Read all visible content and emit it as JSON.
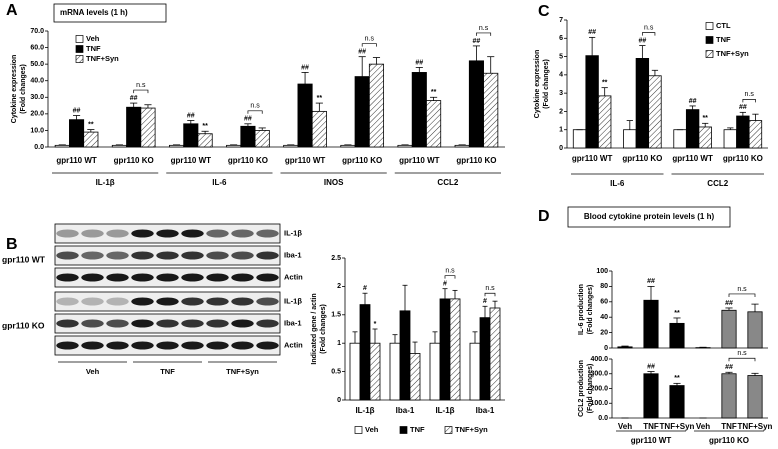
{
  "chart_data": [
    {
      "type": "bar",
      "panel": "A",
      "title": "mRNA levels (1 h)",
      "ylabel": [
        "Cytokine expression",
        "(Fold changes)"
      ],
      "categories": [
        "gpr110 WT",
        "gpr110 KO",
        "gpr110 WT",
        "gpr110 KO",
        "gpr110 WT",
        "gpr110 KO",
        "gpr110 WT",
        "gpr110 KO"
      ],
      "groups": [
        "IL-1β",
        "IL-6",
        "INOS",
        "CCL2"
      ],
      "category_notes": [
        null,
        "n.s",
        null,
        "n.s",
        null,
        "n.s",
        null,
        "n.s"
      ],
      "legend": "top-left",
      "ylim": [
        0,
        70
      ],
      "yticks": [
        {
          "value": 0,
          "label": "0.0"
        },
        {
          "value": 10,
          "label": "10.0"
        },
        {
          "value": 20,
          "label": "20.0"
        },
        {
          "value": 30,
          "label": "30.0"
        },
        {
          "value": 40,
          "label": "40.0"
        },
        {
          "value": 50,
          "label": "50.0"
        },
        {
          "value": 60,
          "label": "60.0"
        },
        {
          "value": 70,
          "label": "70.0"
        }
      ],
      "series": [
        {
          "name": "Veh",
          "color": "#ffffff",
          "values": [
            1,
            1,
            1,
            1,
            1,
            1,
            1,
            1
          ],
          "errors": [
            0.3,
            0.3,
            0.3,
            0.3,
            0.3,
            0.3,
            0.3,
            0.3
          ],
          "markers": [
            null,
            null,
            null,
            null,
            null,
            null,
            null,
            null
          ]
        },
        {
          "name": "TNF",
          "color": "#000000",
          "values": [
            16.5,
            24,
            14,
            12.5,
            38,
            42.5,
            45,
            52
          ],
          "errors": [
            2.5,
            2.5,
            2,
            1.5,
            7,
            12,
            3,
            9
          ],
          "markers": [
            "##",
            "##",
            "##",
            "##",
            "##",
            "##",
            "##",
            "##"
          ]
        },
        {
          "name": "TNF+Syn",
          "color": "#000000",
          "pattern": "hatch",
          "values": [
            9,
            23.5,
            8,
            10,
            21.5,
            50,
            28,
            44.5
          ],
          "errors": [
            1.5,
            2,
            1.5,
            1.5,
            5,
            4,
            2,
            10
          ],
          "markers": [
            "**",
            null,
            "**",
            null,
            "**",
            null,
            "**",
            null
          ]
        }
      ]
    },
    {
      "type": "bar",
      "panel": "C",
      "ylabel": [
        "Cytokine expression",
        "(Fold changes)"
      ],
      "categories": [
        "gpr110 WT",
        "gpr110 KO",
        "gpr110 WT",
        "gpr110 KO"
      ],
      "groups": [
        "IL-6",
        "CCL2"
      ],
      "category_notes": [
        null,
        "n.s",
        null,
        "n.s"
      ],
      "legend": "top-right",
      "ylim": [
        0,
        7
      ],
      "yticks": [
        0,
        1,
        2,
        3,
        4,
        5,
        6,
        7
      ],
      "series": [
        {
          "name": "CTL",
          "color": "#ffffff",
          "values": [
            1,
            1,
            1,
            1
          ],
          "errors": [
            0,
            0.5,
            0,
            0.1
          ],
          "markers": [
            null,
            null,
            null,
            null
          ]
        },
        {
          "name": "TNF",
          "color": "#000000",
          "values": [
            5.05,
            4.9,
            2.1,
            1.75
          ],
          "errors": [
            1,
            0.7,
            0.2,
            0.2
          ],
          "markers": [
            "##",
            "##",
            "##",
            "##"
          ]
        },
        {
          "name": "TNF+Syn",
          "color": "#000000",
          "pattern": "hatch",
          "values": [
            2.85,
            3.95,
            1.15,
            1.5
          ],
          "errors": [
            0.45,
            0.3,
            0.2,
            0.35
          ],
          "markers": [
            "**",
            null,
            "**",
            null
          ]
        }
      ]
    },
    {
      "type": "bar",
      "panel": "B",
      "ylabel": [
        "Indicated gene / actin",
        "(Fold changes)"
      ],
      "categories": [
        "IL-1β",
        "Iba-1",
        "IL-1β",
        "Iba-1"
      ],
      "category_notes": [
        null,
        null,
        "n.s",
        "n.s"
      ],
      "legend": "bottom",
      "ylim": [
        0,
        2.5
      ],
      "yticks": [
        0,
        0.5,
        1,
        1.5,
        2,
        2.5
      ],
      "series": [
        {
          "name": "Veh",
          "color": "#ffffff",
          "values": [
            1,
            1,
            1,
            1
          ],
          "errors": [
            0.2,
            0.15,
            0.2,
            0.2
          ],
          "markers": [
            null,
            null,
            null,
            null
          ]
        },
        {
          "name": "TNF",
          "color": "#000000",
          "values": [
            1.68,
            1.57,
            1.78,
            1.45
          ],
          "errors": [
            0.2,
            0.45,
            0.18,
            0.2
          ],
          "markers": [
            "#",
            null,
            "#",
            "#"
          ]
        },
        {
          "name": "TNF+Syn",
          "color": "#000000",
          "pattern": "hatch",
          "values": [
            1.0,
            0.82,
            1.78,
            1.62
          ],
          "errors": [
            0.25,
            0.2,
            0.15,
            0.12
          ],
          "markers": [
            "*",
            null,
            null,
            null
          ]
        }
      ]
    },
    {
      "type": "bar",
      "panel": "D",
      "title": "Blood cytokine protein levels (1 h)",
      "categories": [
        "Veh",
        "TNF",
        "TNF+Syn",
        "Veh",
        "TNF",
        "TNF+Syn"
      ],
      "groups": [
        "gpr110 WT",
        "gpr110 KO"
      ],
      "colors": [
        "#000000",
        "#000000",
        "#000000",
        "#888888",
        "#888888",
        "#888888"
      ],
      "subplots": [
        {
          "ylabel": [
            "IL-6 production",
            "(Fold changes)"
          ],
          "ylim": [
            0,
            100
          ],
          "yticks": [
            0,
            20,
            40,
            60,
            80,
            100
          ],
          "values": [
            1.5,
            62,
            32,
            0.5,
            49,
            47
          ],
          "errors": [
            1,
            18,
            7,
            0.5,
            3,
            10
          ],
          "markers": [
            null,
            "##",
            "**",
            null,
            "##",
            null
          ],
          "comparisons": [
            {
              "categories": [
                4,
                5
              ],
              "label": "n.s"
            }
          ]
        },
        {
          "ylabel": [
            "CCL2 production",
            "(Fold changes)"
          ],
          "ylim": [
            0,
            400
          ],
          "yticks": [
            {
              "value": 0,
              "label": "0.0"
            },
            {
              "value": 100,
              "label": "100.0"
            },
            {
              "value": 200,
              "label": "200.0"
            },
            {
              "value": 300,
              "label": "300.0"
            },
            {
              "value": 400,
              "label": "400.0"
            }
          ],
          "values": [
            0,
            300,
            220,
            0,
            300,
            288
          ],
          "errors": [
            0,
            15,
            15,
            0,
            10,
            15
          ],
          "markers": [
            null,
            "##",
            "**",
            null,
            "##",
            null
          ],
          "comparisons": [
            {
              "categories": [
                4,
                5
              ],
              "label": "n.s"
            }
          ]
        }
      ]
    }
  ],
  "blot": {
    "rows": [
      "IL-1β",
      "Iba-1",
      "Actin",
      "IL-1β",
      "Iba-1",
      "Actin"
    ],
    "genotypes": [
      "gpr110 WT",
      "gpr110 KO"
    ],
    "treatments": [
      "Veh",
      "TNF",
      "TNF+Syn"
    ]
  }
}
